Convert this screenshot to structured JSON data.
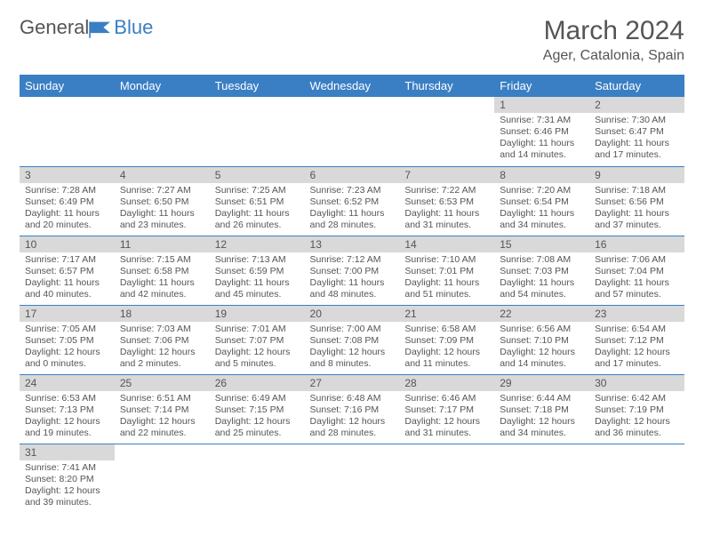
{
  "logo": {
    "text1": "General",
    "text2": "Blue"
  },
  "title": "March 2024",
  "location": "Ager, Catalonia, Spain",
  "colors": {
    "header_bg": "#3a7fc4",
    "header_text": "#ffffff",
    "daynum_bg": "#d9d9d9",
    "body_text": "#555555",
    "rule": "#3a7fc4"
  },
  "weekdays": [
    "Sunday",
    "Monday",
    "Tuesday",
    "Wednesday",
    "Thursday",
    "Friday",
    "Saturday"
  ],
  "cells": [
    {
      "n": "",
      "sr": "",
      "ss": "",
      "d1": "",
      "d2": ""
    },
    {
      "n": "",
      "sr": "",
      "ss": "",
      "d1": "",
      "d2": ""
    },
    {
      "n": "",
      "sr": "",
      "ss": "",
      "d1": "",
      "d2": ""
    },
    {
      "n": "",
      "sr": "",
      "ss": "",
      "d1": "",
      "d2": ""
    },
    {
      "n": "",
      "sr": "",
      "ss": "",
      "d1": "",
      "d2": ""
    },
    {
      "n": "1",
      "sr": "Sunrise: 7:31 AM",
      "ss": "Sunset: 6:46 PM",
      "d1": "Daylight: 11 hours",
      "d2": "and 14 minutes."
    },
    {
      "n": "2",
      "sr": "Sunrise: 7:30 AM",
      "ss": "Sunset: 6:47 PM",
      "d1": "Daylight: 11 hours",
      "d2": "and 17 minutes."
    },
    {
      "n": "3",
      "sr": "Sunrise: 7:28 AM",
      "ss": "Sunset: 6:49 PM",
      "d1": "Daylight: 11 hours",
      "d2": "and 20 minutes."
    },
    {
      "n": "4",
      "sr": "Sunrise: 7:27 AM",
      "ss": "Sunset: 6:50 PM",
      "d1": "Daylight: 11 hours",
      "d2": "and 23 minutes."
    },
    {
      "n": "5",
      "sr": "Sunrise: 7:25 AM",
      "ss": "Sunset: 6:51 PM",
      "d1": "Daylight: 11 hours",
      "d2": "and 26 minutes."
    },
    {
      "n": "6",
      "sr": "Sunrise: 7:23 AM",
      "ss": "Sunset: 6:52 PM",
      "d1": "Daylight: 11 hours",
      "d2": "and 28 minutes."
    },
    {
      "n": "7",
      "sr": "Sunrise: 7:22 AM",
      "ss": "Sunset: 6:53 PM",
      "d1": "Daylight: 11 hours",
      "d2": "and 31 minutes."
    },
    {
      "n": "8",
      "sr": "Sunrise: 7:20 AM",
      "ss": "Sunset: 6:54 PM",
      "d1": "Daylight: 11 hours",
      "d2": "and 34 minutes."
    },
    {
      "n": "9",
      "sr": "Sunrise: 7:18 AM",
      "ss": "Sunset: 6:56 PM",
      "d1": "Daylight: 11 hours",
      "d2": "and 37 minutes."
    },
    {
      "n": "10",
      "sr": "Sunrise: 7:17 AM",
      "ss": "Sunset: 6:57 PM",
      "d1": "Daylight: 11 hours",
      "d2": "and 40 minutes."
    },
    {
      "n": "11",
      "sr": "Sunrise: 7:15 AM",
      "ss": "Sunset: 6:58 PM",
      "d1": "Daylight: 11 hours",
      "d2": "and 42 minutes."
    },
    {
      "n": "12",
      "sr": "Sunrise: 7:13 AM",
      "ss": "Sunset: 6:59 PM",
      "d1": "Daylight: 11 hours",
      "d2": "and 45 minutes."
    },
    {
      "n": "13",
      "sr": "Sunrise: 7:12 AM",
      "ss": "Sunset: 7:00 PM",
      "d1": "Daylight: 11 hours",
      "d2": "and 48 minutes."
    },
    {
      "n": "14",
      "sr": "Sunrise: 7:10 AM",
      "ss": "Sunset: 7:01 PM",
      "d1": "Daylight: 11 hours",
      "d2": "and 51 minutes."
    },
    {
      "n": "15",
      "sr": "Sunrise: 7:08 AM",
      "ss": "Sunset: 7:03 PM",
      "d1": "Daylight: 11 hours",
      "d2": "and 54 minutes."
    },
    {
      "n": "16",
      "sr": "Sunrise: 7:06 AM",
      "ss": "Sunset: 7:04 PM",
      "d1": "Daylight: 11 hours",
      "d2": "and 57 minutes."
    },
    {
      "n": "17",
      "sr": "Sunrise: 7:05 AM",
      "ss": "Sunset: 7:05 PM",
      "d1": "Daylight: 12 hours",
      "d2": "and 0 minutes."
    },
    {
      "n": "18",
      "sr": "Sunrise: 7:03 AM",
      "ss": "Sunset: 7:06 PM",
      "d1": "Daylight: 12 hours",
      "d2": "and 2 minutes."
    },
    {
      "n": "19",
      "sr": "Sunrise: 7:01 AM",
      "ss": "Sunset: 7:07 PM",
      "d1": "Daylight: 12 hours",
      "d2": "and 5 minutes."
    },
    {
      "n": "20",
      "sr": "Sunrise: 7:00 AM",
      "ss": "Sunset: 7:08 PM",
      "d1": "Daylight: 12 hours",
      "d2": "and 8 minutes."
    },
    {
      "n": "21",
      "sr": "Sunrise: 6:58 AM",
      "ss": "Sunset: 7:09 PM",
      "d1": "Daylight: 12 hours",
      "d2": "and 11 minutes."
    },
    {
      "n": "22",
      "sr": "Sunrise: 6:56 AM",
      "ss": "Sunset: 7:10 PM",
      "d1": "Daylight: 12 hours",
      "d2": "and 14 minutes."
    },
    {
      "n": "23",
      "sr": "Sunrise: 6:54 AM",
      "ss": "Sunset: 7:12 PM",
      "d1": "Daylight: 12 hours",
      "d2": "and 17 minutes."
    },
    {
      "n": "24",
      "sr": "Sunrise: 6:53 AM",
      "ss": "Sunset: 7:13 PM",
      "d1": "Daylight: 12 hours",
      "d2": "and 19 minutes."
    },
    {
      "n": "25",
      "sr": "Sunrise: 6:51 AM",
      "ss": "Sunset: 7:14 PM",
      "d1": "Daylight: 12 hours",
      "d2": "and 22 minutes."
    },
    {
      "n": "26",
      "sr": "Sunrise: 6:49 AM",
      "ss": "Sunset: 7:15 PM",
      "d1": "Daylight: 12 hours",
      "d2": "and 25 minutes."
    },
    {
      "n": "27",
      "sr": "Sunrise: 6:48 AM",
      "ss": "Sunset: 7:16 PM",
      "d1": "Daylight: 12 hours",
      "d2": "and 28 minutes."
    },
    {
      "n": "28",
      "sr": "Sunrise: 6:46 AM",
      "ss": "Sunset: 7:17 PM",
      "d1": "Daylight: 12 hours",
      "d2": "and 31 minutes."
    },
    {
      "n": "29",
      "sr": "Sunrise: 6:44 AM",
      "ss": "Sunset: 7:18 PM",
      "d1": "Daylight: 12 hours",
      "d2": "and 34 minutes."
    },
    {
      "n": "30",
      "sr": "Sunrise: 6:42 AM",
      "ss": "Sunset: 7:19 PM",
      "d1": "Daylight: 12 hours",
      "d2": "and 36 minutes."
    },
    {
      "n": "31",
      "sr": "Sunrise: 7:41 AM",
      "ss": "Sunset: 8:20 PM",
      "d1": "Daylight: 12 hours",
      "d2": "and 39 minutes."
    },
    {
      "n": "",
      "sr": "",
      "ss": "",
      "d1": "",
      "d2": ""
    },
    {
      "n": "",
      "sr": "",
      "ss": "",
      "d1": "",
      "d2": ""
    },
    {
      "n": "",
      "sr": "",
      "ss": "",
      "d1": "",
      "d2": ""
    },
    {
      "n": "",
      "sr": "",
      "ss": "",
      "d1": "",
      "d2": ""
    },
    {
      "n": "",
      "sr": "",
      "ss": "",
      "d1": "",
      "d2": ""
    },
    {
      "n": "",
      "sr": "",
      "ss": "",
      "d1": "",
      "d2": ""
    }
  ]
}
